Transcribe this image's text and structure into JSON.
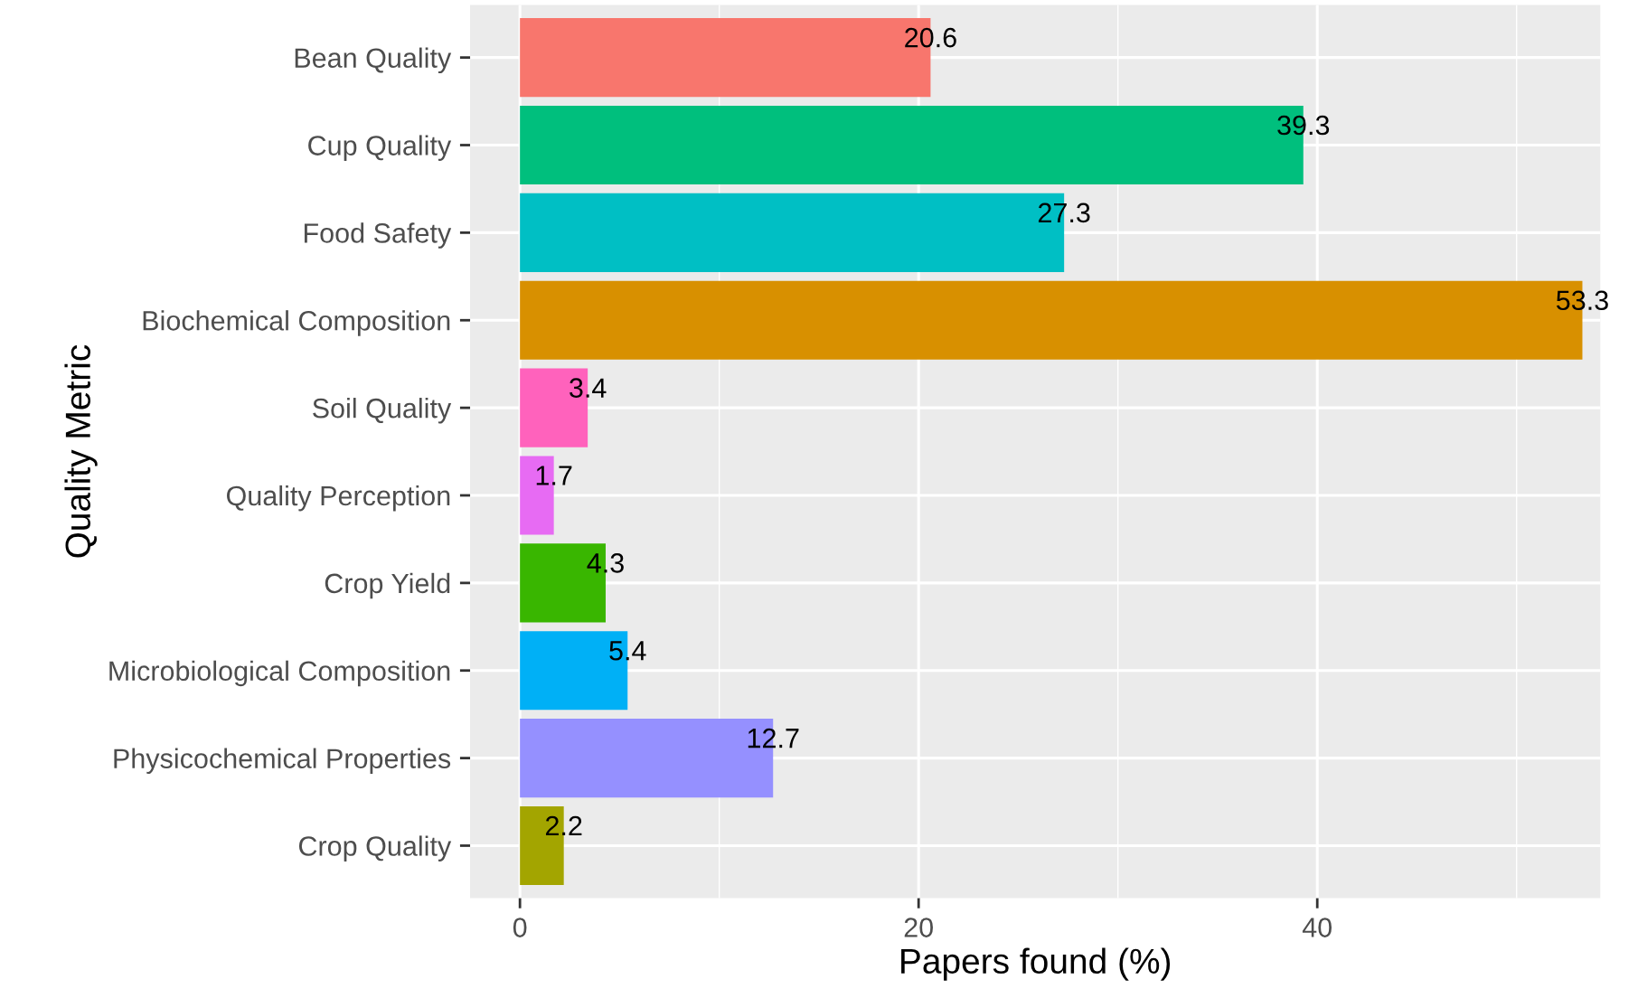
{
  "chart_data": {
    "type": "bar",
    "orientation": "horizontal",
    "xlabel": "Papers found (%)",
    "ylabel": "Quality Metric",
    "categories": [
      "Bean Quality",
      "Cup Quality",
      "Food Safety",
      "Biochemical Composition",
      "Soil Quality",
      "Quality Perception",
      "Crop Yield",
      "Microbiological Composition",
      "Physicochemical Properties",
      "Crop Quality"
    ],
    "values": [
      20.6,
      39.3,
      27.3,
      53.3,
      3.4,
      1.7,
      4.3,
      5.4,
      12.7,
      2.2
    ],
    "colors": [
      "#f8766d",
      "#00bf7d",
      "#00bfc4",
      "#d89000",
      "#ff62bc",
      "#e76bf3",
      "#39b600",
      "#00b0f6",
      "#9590ff",
      "#a3a500"
    ],
    "xlim": [
      -2.5,
      54.2
    ],
    "xticks": [
      0,
      {
        "value": 10,
        "label": null
      },
      20,
      {
        "value": 30,
        "label": null
      },
      40,
      {
        "value": 50,
        "label": null
      }
    ],
    "grid": true,
    "data_labels": true
  }
}
